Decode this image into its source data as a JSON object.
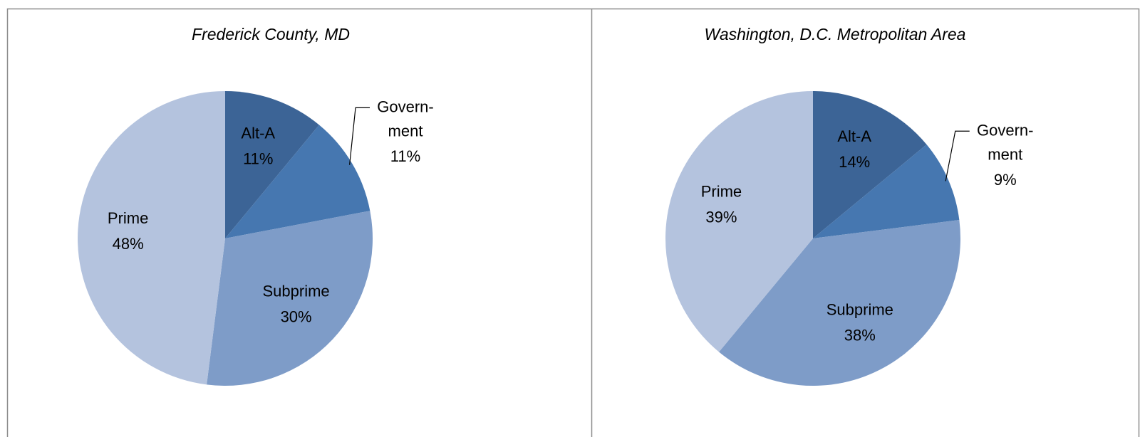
{
  "chart_data": [
    {
      "type": "pie",
      "title": "Frederick County, MD",
      "categories": [
        "Alt-A",
        "Govern-ment",
        "Subprime",
        "Prime"
      ],
      "values": [
        11,
        11,
        30,
        48
      ],
      "value_labels": [
        "11%",
        "11%",
        "30%",
        "48%"
      ],
      "colors": [
        "#3c6496",
        "#4677b0",
        "#7e9cc8",
        "#b4c3de"
      ]
    },
    {
      "type": "pie",
      "title": "Washington, D.C. Metropolitan Area",
      "categories": [
        "Alt-A",
        "Govern-ment",
        "Subprime",
        "Prime"
      ],
      "values": [
        14,
        9,
        38,
        39
      ],
      "value_labels": [
        "14%",
        "9%",
        "38%",
        "39%"
      ],
      "colors": [
        "#3c6496",
        "#4677b0",
        "#7e9cc8",
        "#b4c3de"
      ]
    }
  ]
}
